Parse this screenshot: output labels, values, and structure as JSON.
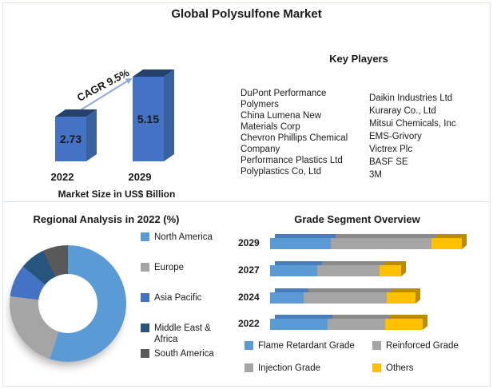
{
  "page": {
    "title": "Global Polysulfone Market",
    "border_color": "#dce6f2"
  },
  "key_players": {
    "title": "Key Players",
    "columns": [
      {
        "companies": [
          "DuPont Performance Polymers",
          "China Lumena New Materials Corp",
          "Chevron Phillips Chemical Company",
          "Performance Plastics Ltd",
          "Polyplastics Co, Ltd"
        ]
      },
      {
        "companies": [
          "Daikin Industries Ltd",
          "Kuraray Co., Ltd",
          "Mitsui Chemicals, Inc",
          "EMS-Grivory",
          "Victrex Plc",
          "BASF SE",
          "3M"
        ]
      }
    ]
  },
  "chart_data": [
    {
      "id": "market_size",
      "type": "bar",
      "title": "Market Size in US$ Billion",
      "categories": [
        "2022",
        "2029"
      ],
      "values": [
        2.73,
        5.15
      ],
      "annotation": "CAGR 9.5%",
      "ylim": [
        0,
        6
      ],
      "bar_color": "#4472C4",
      "bar_color_top": "#24406B",
      "bar_color_side": "#38619F",
      "arrow_color": "#8FAADC",
      "style": "3d-columns"
    },
    {
      "id": "regional_analysis",
      "type": "pie",
      "donut": true,
      "title": "Regional Analysis in 2022 (%)",
      "labels": [
        "North America",
        "Europe",
        "Asia Pacific",
        "Middle East & Africa",
        "South America"
      ],
      "values": [
        55,
        22,
        9,
        7,
        7
      ],
      "colors": [
        "#5B9BD5",
        "#A5A5A5",
        "#4472C4",
        "#26547C",
        "#595959"
      ],
      "legend_position": "right",
      "note": "slice values estimated from arc angles; no data labels shown"
    },
    {
      "id": "grade_segment",
      "type": "bar",
      "orientation": "horizontal",
      "stacked": true,
      "title": "Grade Segment Overview",
      "categories": [
        "2029",
        "2027",
        "2024",
        "2022"
      ],
      "series": [
        {
          "name": "Flame Retardant Grade",
          "color": "#5B9BD5",
          "dark": "#4A7EBB",
          "values": [
            76,
            59,
            42,
            72
          ]
        },
        {
          "name": "Reinforced / Injection Grade (gray block)",
          "color": "#A5A5A5",
          "dark": "#8A8A8A",
          "values": [
            126,
            78,
            104,
            72
          ]
        },
        {
          "name": "Others",
          "color": "#FFC000",
          "dark": "#BC8C00",
          "values": [
            38,
            27,
            36,
            47
          ]
        }
      ],
      "legend": [
        {
          "label": "Flame Retardant Grade",
          "color": "#5B9BD5"
        },
        {
          "label": "Reinforced Grade",
          "color": "#A5A5A5"
        },
        {
          "label": "Injection Grade",
          "color": "#A5A5A5"
        },
        {
          "label": "Others",
          "color": "#FFC000"
        }
      ],
      "note": "relative units estimated from bar lengths; axis not labeled"
    }
  ]
}
